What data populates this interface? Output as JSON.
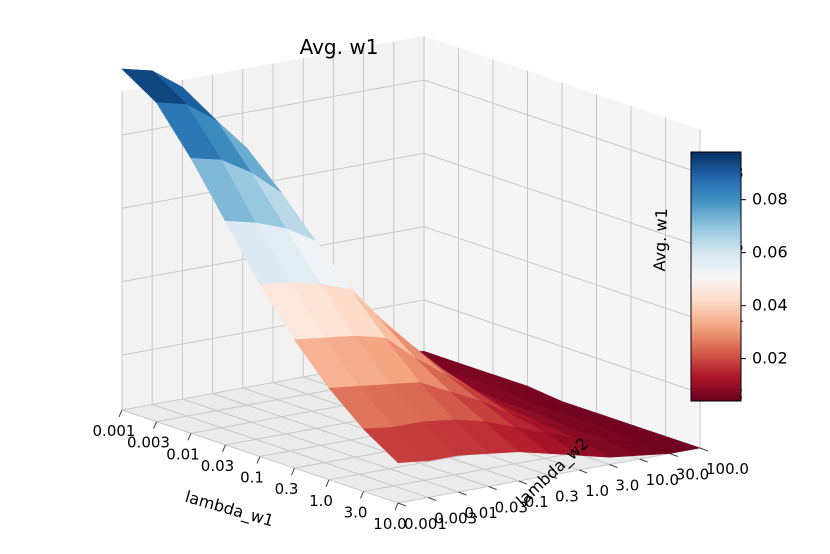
{
  "chart_data": {
    "type": "surface3d",
    "title": "Avg. w1",
    "xlabel": "lambda_w1",
    "ylabel": "lambda_w2",
    "zlabel": "Avg. w1",
    "x_ticks": [
      "0.001",
      "0.003",
      "0.01",
      "0.03",
      "0.1",
      "0.3",
      "1.0",
      "3.0",
      "10.0"
    ],
    "y_ticks": [
      "0.001",
      "0.003",
      "0.01",
      "0.03",
      "0.1",
      "0.3",
      "1.0",
      "3.0",
      "10.0",
      "30.0",
      "100.0"
    ],
    "z_ticks": [
      "0.02",
      "0.04",
      "0.06",
      "0.08"
    ],
    "zlim": [
      0.005,
      0.092
    ],
    "colormap": "RdBu",
    "colorbar": {
      "min": 0.004,
      "max": 0.098,
      "ticks": [
        "0.02",
        "0.04",
        "0.06",
        "0.08"
      ],
      "colors": [
        "#67001f",
        "#b2182b",
        "#d6604d",
        "#f4a582",
        "#fddbc7",
        "#f7f7f7",
        "#d1e5f0",
        "#92c5de",
        "#4393c3",
        "#2166ac",
        "#053061"
      ]
    },
    "grid": true,
    "z": [
      [
        0.098,
        0.096,
        0.09,
        0.08,
        0.06,
        0.045,
        0.03,
        0.018,
        0.01,
        0.007,
        0.006
      ],
      [
        0.092,
        0.09,
        0.084,
        0.075,
        0.056,
        0.042,
        0.028,
        0.017,
        0.01,
        0.007,
        0.006
      ],
      [
        0.08,
        0.078,
        0.073,
        0.066,
        0.05,
        0.038,
        0.026,
        0.016,
        0.009,
        0.007,
        0.006
      ],
      [
        0.066,
        0.064,
        0.061,
        0.056,
        0.043,
        0.033,
        0.023,
        0.014,
        0.009,
        0.007,
        0.006
      ],
      [
        0.052,
        0.051,
        0.049,
        0.046,
        0.036,
        0.028,
        0.02,
        0.013,
        0.008,
        0.006,
        0.005
      ],
      [
        0.04,
        0.039,
        0.038,
        0.036,
        0.029,
        0.023,
        0.017,
        0.011,
        0.008,
        0.006,
        0.005
      ],
      [
        0.03,
        0.029,
        0.028,
        0.027,
        0.023,
        0.019,
        0.014,
        0.01,
        0.007,
        0.006,
        0.005
      ],
      [
        0.022,
        0.021,
        0.021,
        0.02,
        0.018,
        0.015,
        0.012,
        0.009,
        0.007,
        0.005,
        0.005
      ],
      [
        0.016,
        0.015,
        0.015,
        0.014,
        0.013,
        0.011,
        0.009,
        0.007,
        0.006,
        0.005,
        0.005
      ]
    ]
  }
}
